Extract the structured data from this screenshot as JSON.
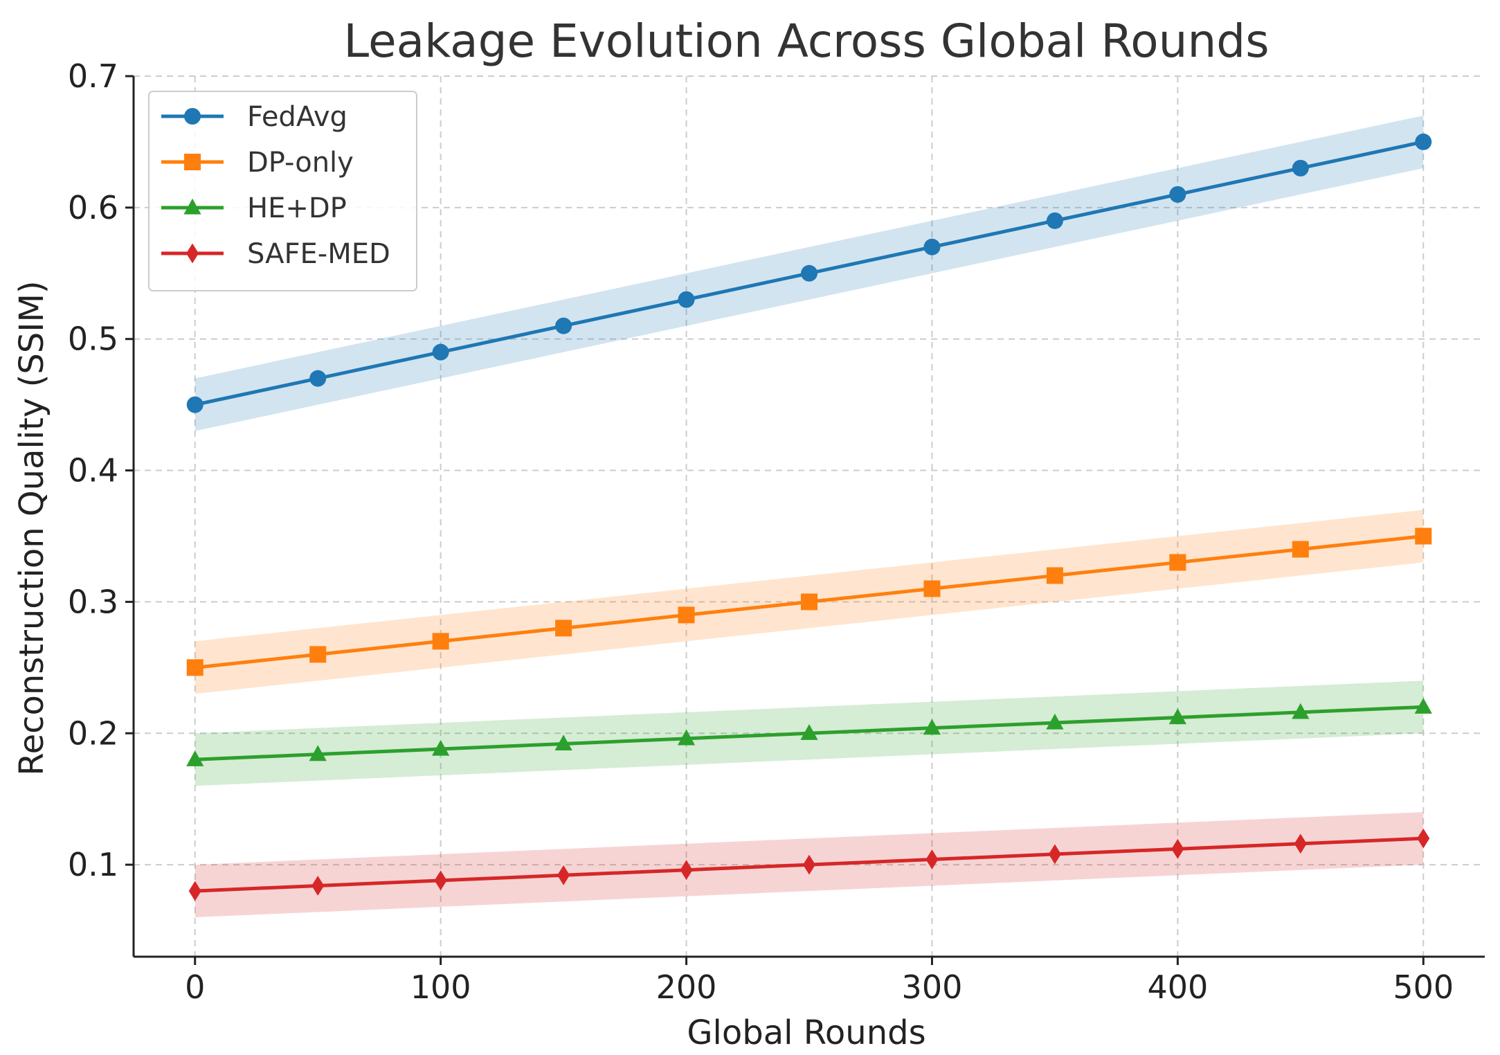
{
  "chart_data": {
    "type": "line",
    "title": "Leakage Evolution Across Global Rounds",
    "xlabel": "Global Rounds",
    "ylabel": "Reconstruction Quality (SSIM)",
    "xlim": [
      -25,
      525
    ],
    "ylim": [
      0.03,
      0.7
    ],
    "xticks": [
      0,
      100,
      200,
      300,
      400,
      500
    ],
    "xtick_labels": [
      "0",
      "100",
      "200",
      "300",
      "400",
      "500"
    ],
    "yticks": [
      0.1,
      0.2,
      0.3,
      0.4,
      0.5,
      0.6,
      0.7
    ],
    "ytick_labels": [
      "0.1",
      "0.2",
      "0.3",
      "0.4",
      "0.5",
      "0.6",
      "0.7"
    ],
    "grid": true,
    "legend_position": "top-left",
    "band_halfwidth": 0.02,
    "x": [
      0,
      50,
      100,
      150,
      200,
      250,
      300,
      350,
      400,
      450,
      500
    ],
    "series": [
      {
        "name": "FedAvg",
        "color": "#1f77b4",
        "marker": "circle",
        "values": [
          0.45,
          0.47,
          0.49,
          0.51,
          0.53,
          0.55,
          0.57,
          0.59,
          0.61,
          0.63,
          0.65
        ]
      },
      {
        "name": "DP-only",
        "color": "#ff7f0e",
        "marker": "square",
        "values": [
          0.25,
          0.26,
          0.27,
          0.28,
          0.29,
          0.3,
          0.31,
          0.32,
          0.33,
          0.34,
          0.35
        ]
      },
      {
        "name": "HE+DP",
        "color": "#2ca02c",
        "marker": "triangle",
        "values": [
          0.18,
          0.184,
          0.188,
          0.192,
          0.196,
          0.2,
          0.204,
          0.208,
          0.212,
          0.216,
          0.22
        ]
      },
      {
        "name": "SAFE-MED",
        "color": "#d62728",
        "marker": "diamond",
        "values": [
          0.08,
          0.084,
          0.088,
          0.092,
          0.096,
          0.1,
          0.104,
          0.108,
          0.112,
          0.116,
          0.12
        ]
      }
    ]
  }
}
